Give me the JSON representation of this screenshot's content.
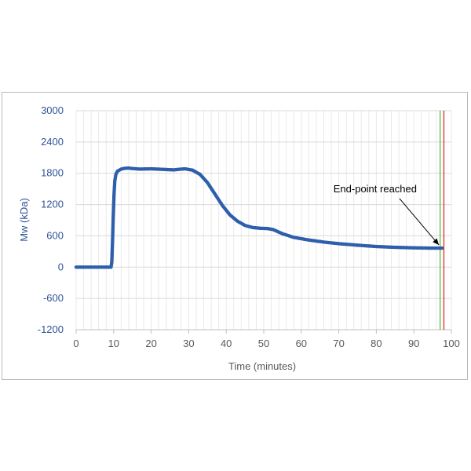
{
  "chart_data": {
    "type": "scatter",
    "title": "",
    "xlabel": "Time (minutes)",
    "ylabel": "Mw (kDa)",
    "xlim": [
      0,
      100
    ],
    "ylim": [
      -1200,
      3000
    ],
    "x_ticks": [
      0,
      10,
      20,
      30,
      40,
      50,
      60,
      70,
      80,
      90,
      100
    ],
    "y_ticks": [
      -1200,
      -600,
      0,
      600,
      1200,
      1800,
      2400,
      3000
    ],
    "grid": true,
    "series": [
      {
        "color": "#2e5fac",
        "points": [
          [
            0,
            0
          ],
          [
            5,
            0
          ],
          [
            9.3,
            0
          ],
          [
            9.5,
            100
          ],
          [
            9.7,
            500
          ],
          [
            9.9,
            1000
          ],
          [
            10.1,
            1400
          ],
          [
            10.3,
            1650
          ],
          [
            10.6,
            1780
          ],
          [
            11,
            1840
          ],
          [
            12,
            1880
          ],
          [
            13,
            1895
          ],
          [
            14,
            1900
          ],
          [
            15,
            1890
          ],
          [
            17,
            1880
          ],
          [
            20,
            1885
          ],
          [
            23,
            1875
          ],
          [
            26,
            1865
          ],
          [
            28,
            1880
          ],
          [
            29,
            1885
          ],
          [
            31,
            1860
          ],
          [
            33,
            1780
          ],
          [
            35,
            1620
          ],
          [
            37,
            1400
          ],
          [
            39,
            1180
          ],
          [
            41,
            1000
          ],
          [
            43,
            880
          ],
          [
            45,
            800
          ],
          [
            47,
            760
          ],
          [
            49,
            745
          ],
          [
            51,
            740
          ],
          [
            52.5,
            720
          ],
          [
            55,
            640
          ],
          [
            58,
            570
          ],
          [
            62,
            520
          ],
          [
            66,
            480
          ],
          [
            70,
            450
          ],
          [
            75,
            420
          ],
          [
            80,
            395
          ],
          [
            85,
            380
          ],
          [
            90,
            370
          ],
          [
            94,
            365
          ],
          [
            97.5,
            365
          ]
        ]
      }
    ],
    "vertical_lines": [
      {
        "x": 97,
        "color": "#70c05a"
      },
      {
        "x": 98,
        "color": "#e0483b"
      }
    ],
    "annotations": [
      {
        "text": "End-point reached",
        "target": [
          97.5,
          365
        ]
      }
    ]
  }
}
